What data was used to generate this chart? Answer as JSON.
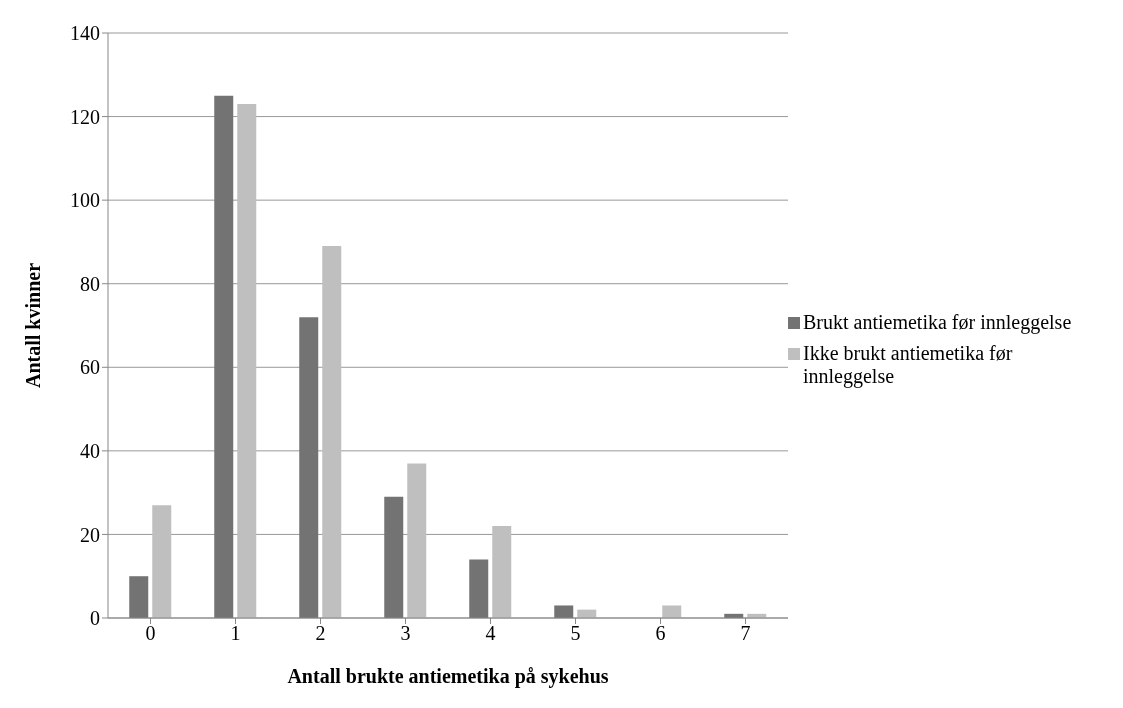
{
  "chart_data": {
    "type": "bar",
    "xlabel": "Antall brukte antiemetika på sykehus",
    "ylabel": "Antall kvinner",
    "categories": [
      "0",
      "1",
      "2",
      "3",
      "4",
      "5",
      "6",
      "7"
    ],
    "series": [
      {
        "name": "Brukt antiemetika før innleggelse",
        "color": "#737373",
        "values": [
          10,
          125,
          72,
          29,
          14,
          3,
          0,
          1
        ]
      },
      {
        "name": "Ikke brukt antiemetika før innleggelse",
        "color": "#bfbfbf",
        "values": [
          27,
          123,
          89,
          37,
          22,
          2,
          3,
          1
        ]
      }
    ],
    "ylim": [
      0,
      140
    ],
    "yticks": [
      0,
      20,
      40,
      60,
      80,
      100,
      120,
      140
    ],
    "grid": "y",
    "legend": "right"
  }
}
